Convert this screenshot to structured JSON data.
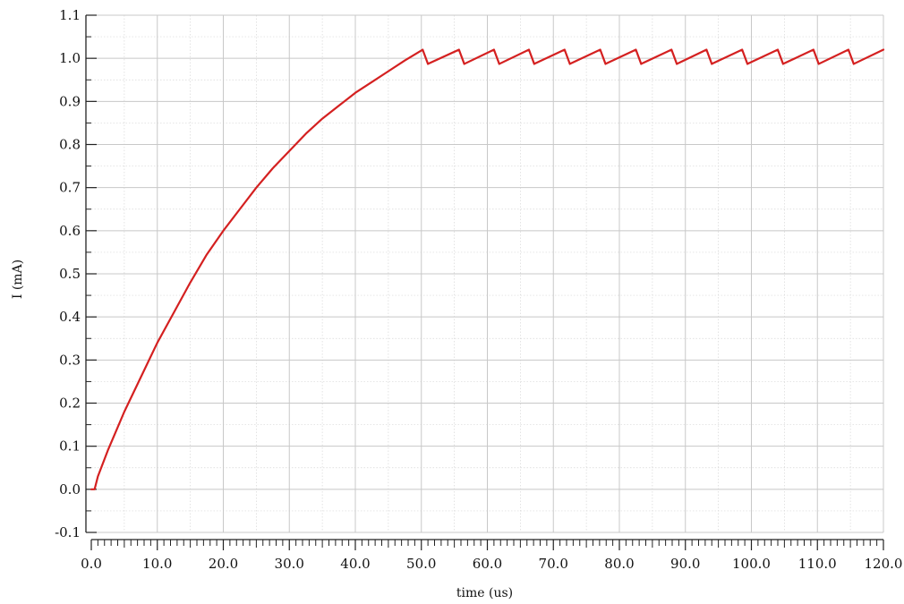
{
  "chart_data": {
    "type": "line",
    "title": "",
    "xlabel": "time (us)",
    "ylabel": "I (mA)",
    "xlim": [
      0,
      120
    ],
    "ylim": [
      -0.1,
      1.1
    ],
    "x_ticks": [
      "0.0",
      "10.0",
      "20.0",
      "30.0",
      "40.0",
      "50.0",
      "60.0",
      "70.0",
      "80.0",
      "90.0",
      "100.0",
      "110.0",
      "120.0"
    ],
    "y_ticks": [
      "-0.1",
      "0.0",
      "0.1",
      "0.2",
      "0.3",
      "0.4",
      "0.5",
      "0.6",
      "0.7",
      "0.8",
      "0.9",
      "1.0",
      "1.1"
    ],
    "grid": true,
    "series": [
      {
        "color": "#d42020",
        "points": [
          [
            0.0,
            0.0
          ],
          [
            0.5,
            0.0
          ],
          [
            1.0,
            0.03
          ],
          [
            2.5,
            0.09
          ],
          [
            5.0,
            0.18
          ],
          [
            7.5,
            0.26
          ],
          [
            10.0,
            0.34
          ],
          [
            12.5,
            0.41
          ],
          [
            15.0,
            0.48
          ],
          [
            17.5,
            0.545
          ],
          [
            20.0,
            0.6
          ],
          [
            22.5,
            0.65
          ],
          [
            25.0,
            0.7
          ],
          [
            27.5,
            0.745
          ],
          [
            30.0,
            0.785
          ],
          [
            32.5,
            0.825
          ],
          [
            35.0,
            0.86
          ],
          [
            37.5,
            0.89
          ],
          [
            40.0,
            0.92
          ],
          [
            42.5,
            0.945
          ],
          [
            45.0,
            0.97
          ],
          [
            47.5,
            0.995
          ],
          [
            50.2,
            1.02
          ],
          [
            51.0,
            0.987
          ],
          [
            55.7,
            1.02
          ],
          [
            56.5,
            0.987
          ],
          [
            61.0,
            1.02
          ],
          [
            61.8,
            0.987
          ],
          [
            66.3,
            1.02
          ],
          [
            67.1,
            0.987
          ],
          [
            71.7,
            1.02
          ],
          [
            72.5,
            0.987
          ],
          [
            77.1,
            1.02
          ],
          [
            77.9,
            0.987
          ],
          [
            82.5,
            1.02
          ],
          [
            83.3,
            0.987
          ],
          [
            87.9,
            1.02
          ],
          [
            88.7,
            0.987
          ],
          [
            93.2,
            1.02
          ],
          [
            94.0,
            0.987
          ],
          [
            98.6,
            1.02
          ],
          [
            99.4,
            0.987
          ],
          [
            104.0,
            1.02
          ],
          [
            104.8,
            0.987
          ],
          [
            109.4,
            1.02
          ],
          [
            110.2,
            0.987
          ],
          [
            114.7,
            1.02
          ],
          [
            115.5,
            0.987
          ],
          [
            120.0,
            1.02
          ]
        ]
      }
    ]
  }
}
